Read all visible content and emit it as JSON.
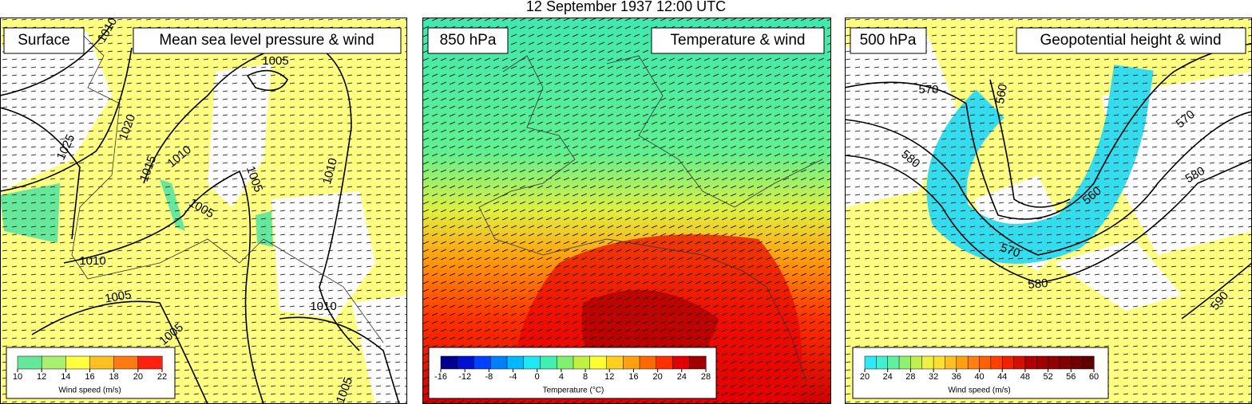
{
  "title": "12 September 1937 12:00 UTC",
  "panels": [
    {
      "level": "Surface",
      "field": "Mean sea level pressure & wind",
      "contour_labels": [
        1010,
        1005,
        1025,
        1020,
        1015,
        1010,
        1005,
        1005,
        1010,
        1010,
        1005,
        1010,
        1005,
        1005
      ],
      "colorbar": {
        "ticks": [
          10,
          12,
          14,
          16,
          18,
          20,
          22
        ],
        "label": "Wind speed (m/s)",
        "colors": [
          "#66e89c",
          "#a8f070",
          "#ffff40",
          "#ffc020",
          "#ff7a10",
          "#ff2010"
        ]
      }
    },
    {
      "level": "850 hPa",
      "field": "Temperature & wind",
      "contour_labels": [],
      "colorbar": {
        "ticks": [
          -16,
          -12,
          -8,
          -4,
          0,
          4,
          8,
          12,
          16,
          20,
          24,
          28
        ],
        "label": "Temperature (°C)",
        "colors": [
          "#00008c",
          "#0010d0",
          "#0040ff",
          "#0080ff",
          "#00b8ff",
          "#20e8f0",
          "#40f0b0",
          "#80f070",
          "#c0f040",
          "#ffff30",
          "#ffd020",
          "#ffa010",
          "#ff6a00",
          "#ff3000",
          "#e00000",
          "#a00000"
        ]
      }
    },
    {
      "level": "500 hPa",
      "field": "Geopotential height & wind",
      "contour_labels": [
        570,
        560,
        580,
        570,
        580,
        560,
        570,
        580,
        590
      ],
      "colorbar": {
        "ticks": [
          20,
          24,
          28,
          32,
          36,
          40,
          44,
          48,
          52,
          56,
          60
        ],
        "label": "Wind speed (m/s)",
        "colors": [
          "#30e8f8",
          "#40f0d0",
          "#60f0a0",
          "#90f070",
          "#c0f050",
          "#f0f040",
          "#ffe030",
          "#ffc020",
          "#ffa010",
          "#ff8010",
          "#ff6000",
          "#ff4000",
          "#f02000",
          "#d01000",
          "#b00000",
          "#a00000",
          "#900000",
          "#800000",
          "#700000",
          "#600000"
        ]
      }
    }
  ]
}
